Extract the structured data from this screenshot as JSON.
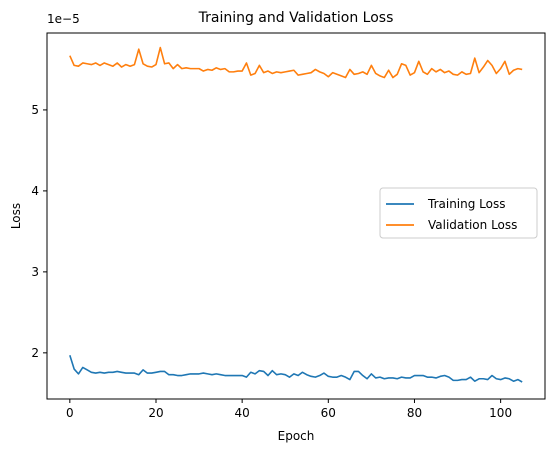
{
  "chart_data": {
    "type": "line",
    "title": "Training and Validation Loss",
    "xlabel": "Epoch",
    "ylabel": "Loss",
    "y_offset_text": "1e−5",
    "xlim": [
      -5.3,
      110.3
    ],
    "ylim": [
      1.43,
      5.95
    ],
    "x_ticks": [
      0,
      20,
      40,
      60,
      80,
      100
    ],
    "y_ticks": [
      2,
      3,
      4,
      5
    ],
    "grid": false,
    "legend_position": "center-right",
    "series": [
      {
        "name": "Training Loss",
        "color": "#1f77b4",
        "x": [
          0,
          1,
          2,
          3,
          4,
          5,
          6,
          7,
          8,
          9,
          10,
          11,
          12,
          13,
          14,
          15,
          16,
          17,
          18,
          19,
          20,
          21,
          22,
          23,
          24,
          25,
          26,
          27,
          28,
          29,
          30,
          31,
          32,
          33,
          34,
          35,
          36,
          37,
          38,
          39,
          40,
          41,
          42,
          43,
          44,
          45,
          46,
          47,
          48,
          49,
          50,
          51,
          52,
          53,
          54,
          55,
          56,
          57,
          58,
          59,
          60,
          61,
          62,
          63,
          64,
          65,
          66,
          67,
          68,
          69,
          70,
          71,
          72,
          73,
          74,
          75,
          76,
          77,
          78,
          79,
          80,
          81,
          82,
          83,
          84,
          85,
          86,
          87,
          88,
          89,
          90,
          91,
          92,
          93,
          94,
          95,
          96,
          97,
          98,
          99,
          100,
          101,
          102,
          103,
          104,
          105
        ],
        "values": [
          1.97,
          1.8,
          1.74,
          1.82,
          1.79,
          1.76,
          1.75,
          1.76,
          1.75,
          1.76,
          1.76,
          1.77,
          1.76,
          1.75,
          1.75,
          1.75,
          1.73,
          1.79,
          1.75,
          1.75,
          1.76,
          1.77,
          1.77,
          1.73,
          1.73,
          1.72,
          1.72,
          1.73,
          1.74,
          1.74,
          1.74,
          1.75,
          1.74,
          1.73,
          1.74,
          1.73,
          1.72,
          1.72,
          1.72,
          1.72,
          1.72,
          1.7,
          1.76,
          1.74,
          1.78,
          1.77,
          1.72,
          1.78,
          1.73,
          1.74,
          1.73,
          1.7,
          1.74,
          1.72,
          1.76,
          1.73,
          1.71,
          1.7,
          1.72,
          1.75,
          1.71,
          1.7,
          1.7,
          1.72,
          1.7,
          1.67,
          1.77,
          1.77,
          1.72,
          1.68,
          1.74,
          1.69,
          1.7,
          1.68,
          1.69,
          1.69,
          1.68,
          1.7,
          1.69,
          1.69,
          1.72,
          1.72,
          1.72,
          1.7,
          1.7,
          1.69,
          1.71,
          1.72,
          1.7,
          1.66,
          1.66,
          1.67,
          1.67,
          1.7,
          1.65,
          1.68,
          1.68,
          1.67,
          1.72,
          1.68,
          1.67,
          1.69,
          1.68,
          1.65,
          1.67,
          1.64
        ]
      },
      {
        "name": "Validation Loss",
        "color": "#ff7f0e",
        "x": [
          0,
          1,
          2,
          3,
          4,
          5,
          6,
          7,
          8,
          9,
          10,
          11,
          12,
          13,
          14,
          15,
          16,
          17,
          18,
          19,
          20,
          21,
          22,
          23,
          24,
          25,
          26,
          27,
          28,
          29,
          30,
          31,
          32,
          33,
          34,
          35,
          36,
          37,
          38,
          39,
          40,
          41,
          42,
          43,
          44,
          45,
          46,
          47,
          48,
          49,
          50,
          51,
          52,
          53,
          54,
          55,
          56,
          57,
          58,
          59,
          60,
          61,
          62,
          63,
          64,
          65,
          66,
          67,
          68,
          69,
          70,
          71,
          72,
          73,
          74,
          75,
          76,
          77,
          78,
          79,
          80,
          81,
          82,
          83,
          84,
          85,
          86,
          87,
          88,
          89,
          90,
          91,
          92,
          93,
          94,
          95,
          96,
          97,
          98,
          99,
          100,
          101,
          102,
          103,
          104,
          105
        ],
        "values": [
          5.67,
          5.55,
          5.54,
          5.58,
          5.57,
          5.56,
          5.58,
          5.55,
          5.58,
          5.56,
          5.54,
          5.58,
          5.53,
          5.56,
          5.54,
          5.56,
          5.75,
          5.57,
          5.54,
          5.53,
          5.56,
          5.77,
          5.57,
          5.58,
          5.51,
          5.56,
          5.51,
          5.52,
          5.51,
          5.51,
          5.51,
          5.48,
          5.5,
          5.49,
          5.52,
          5.5,
          5.51,
          5.47,
          5.47,
          5.48,
          5.48,
          5.58,
          5.43,
          5.45,
          5.55,
          5.46,
          5.48,
          5.45,
          5.47,
          5.46,
          5.47,
          5.48,
          5.49,
          5.43,
          5.44,
          5.45,
          5.46,
          5.5,
          5.47,
          5.45,
          5.41,
          5.46,
          5.44,
          5.42,
          5.4,
          5.5,
          5.44,
          5.45,
          5.47,
          5.44,
          5.55,
          5.45,
          5.42,
          5.4,
          5.49,
          5.4,
          5.44,
          5.57,
          5.55,
          5.43,
          5.46,
          5.6,
          5.47,
          5.44,
          5.51,
          5.47,
          5.5,
          5.46,
          5.48,
          5.44,
          5.43,
          5.47,
          5.44,
          5.45,
          5.64,
          5.46,
          5.53,
          5.61,
          5.55,
          5.45,
          5.51,
          5.6,
          5.44,
          5.49,
          5.51,
          5.5
        ]
      }
    ]
  }
}
